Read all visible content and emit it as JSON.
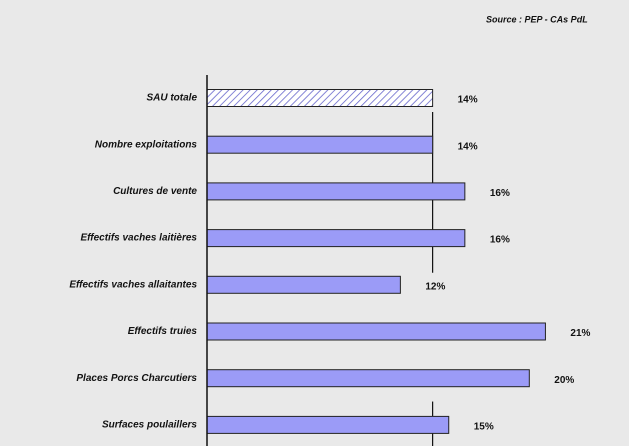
{
  "chart_data": {
    "type": "bar",
    "orientation": "horizontal",
    "source": "Source : PEP - CAs PdL",
    "categories": [
      "SAU totale",
      "Nombre exploitations",
      "Cultures de  vente",
      "Effectifs vaches laitières",
      "Effectifs vaches allaitantes",
      "Effectifs truies",
      "Places Porcs Charcutiers",
      "Surfaces poulaillers"
    ],
    "values": [
      14,
      14,
      16,
      16,
      12,
      21,
      20,
      15
    ],
    "value_labels": [
      "14%",
      "14%",
      "16%",
      "16%",
      "12%",
      "21%",
      "20%",
      "15%"
    ],
    "colors": [
      "#ffffff",
      "#9b9bf7",
      "#9b9bf7",
      "#9b9bf7",
      "#9b9bf7",
      "#9b9bf7",
      "#9b9bf7",
      "#9b9bf7"
    ],
    "hatch": [
      true,
      false,
      false,
      false,
      false,
      false,
      false,
      false
    ],
    "xlim": [
      0,
      26
    ]
  }
}
